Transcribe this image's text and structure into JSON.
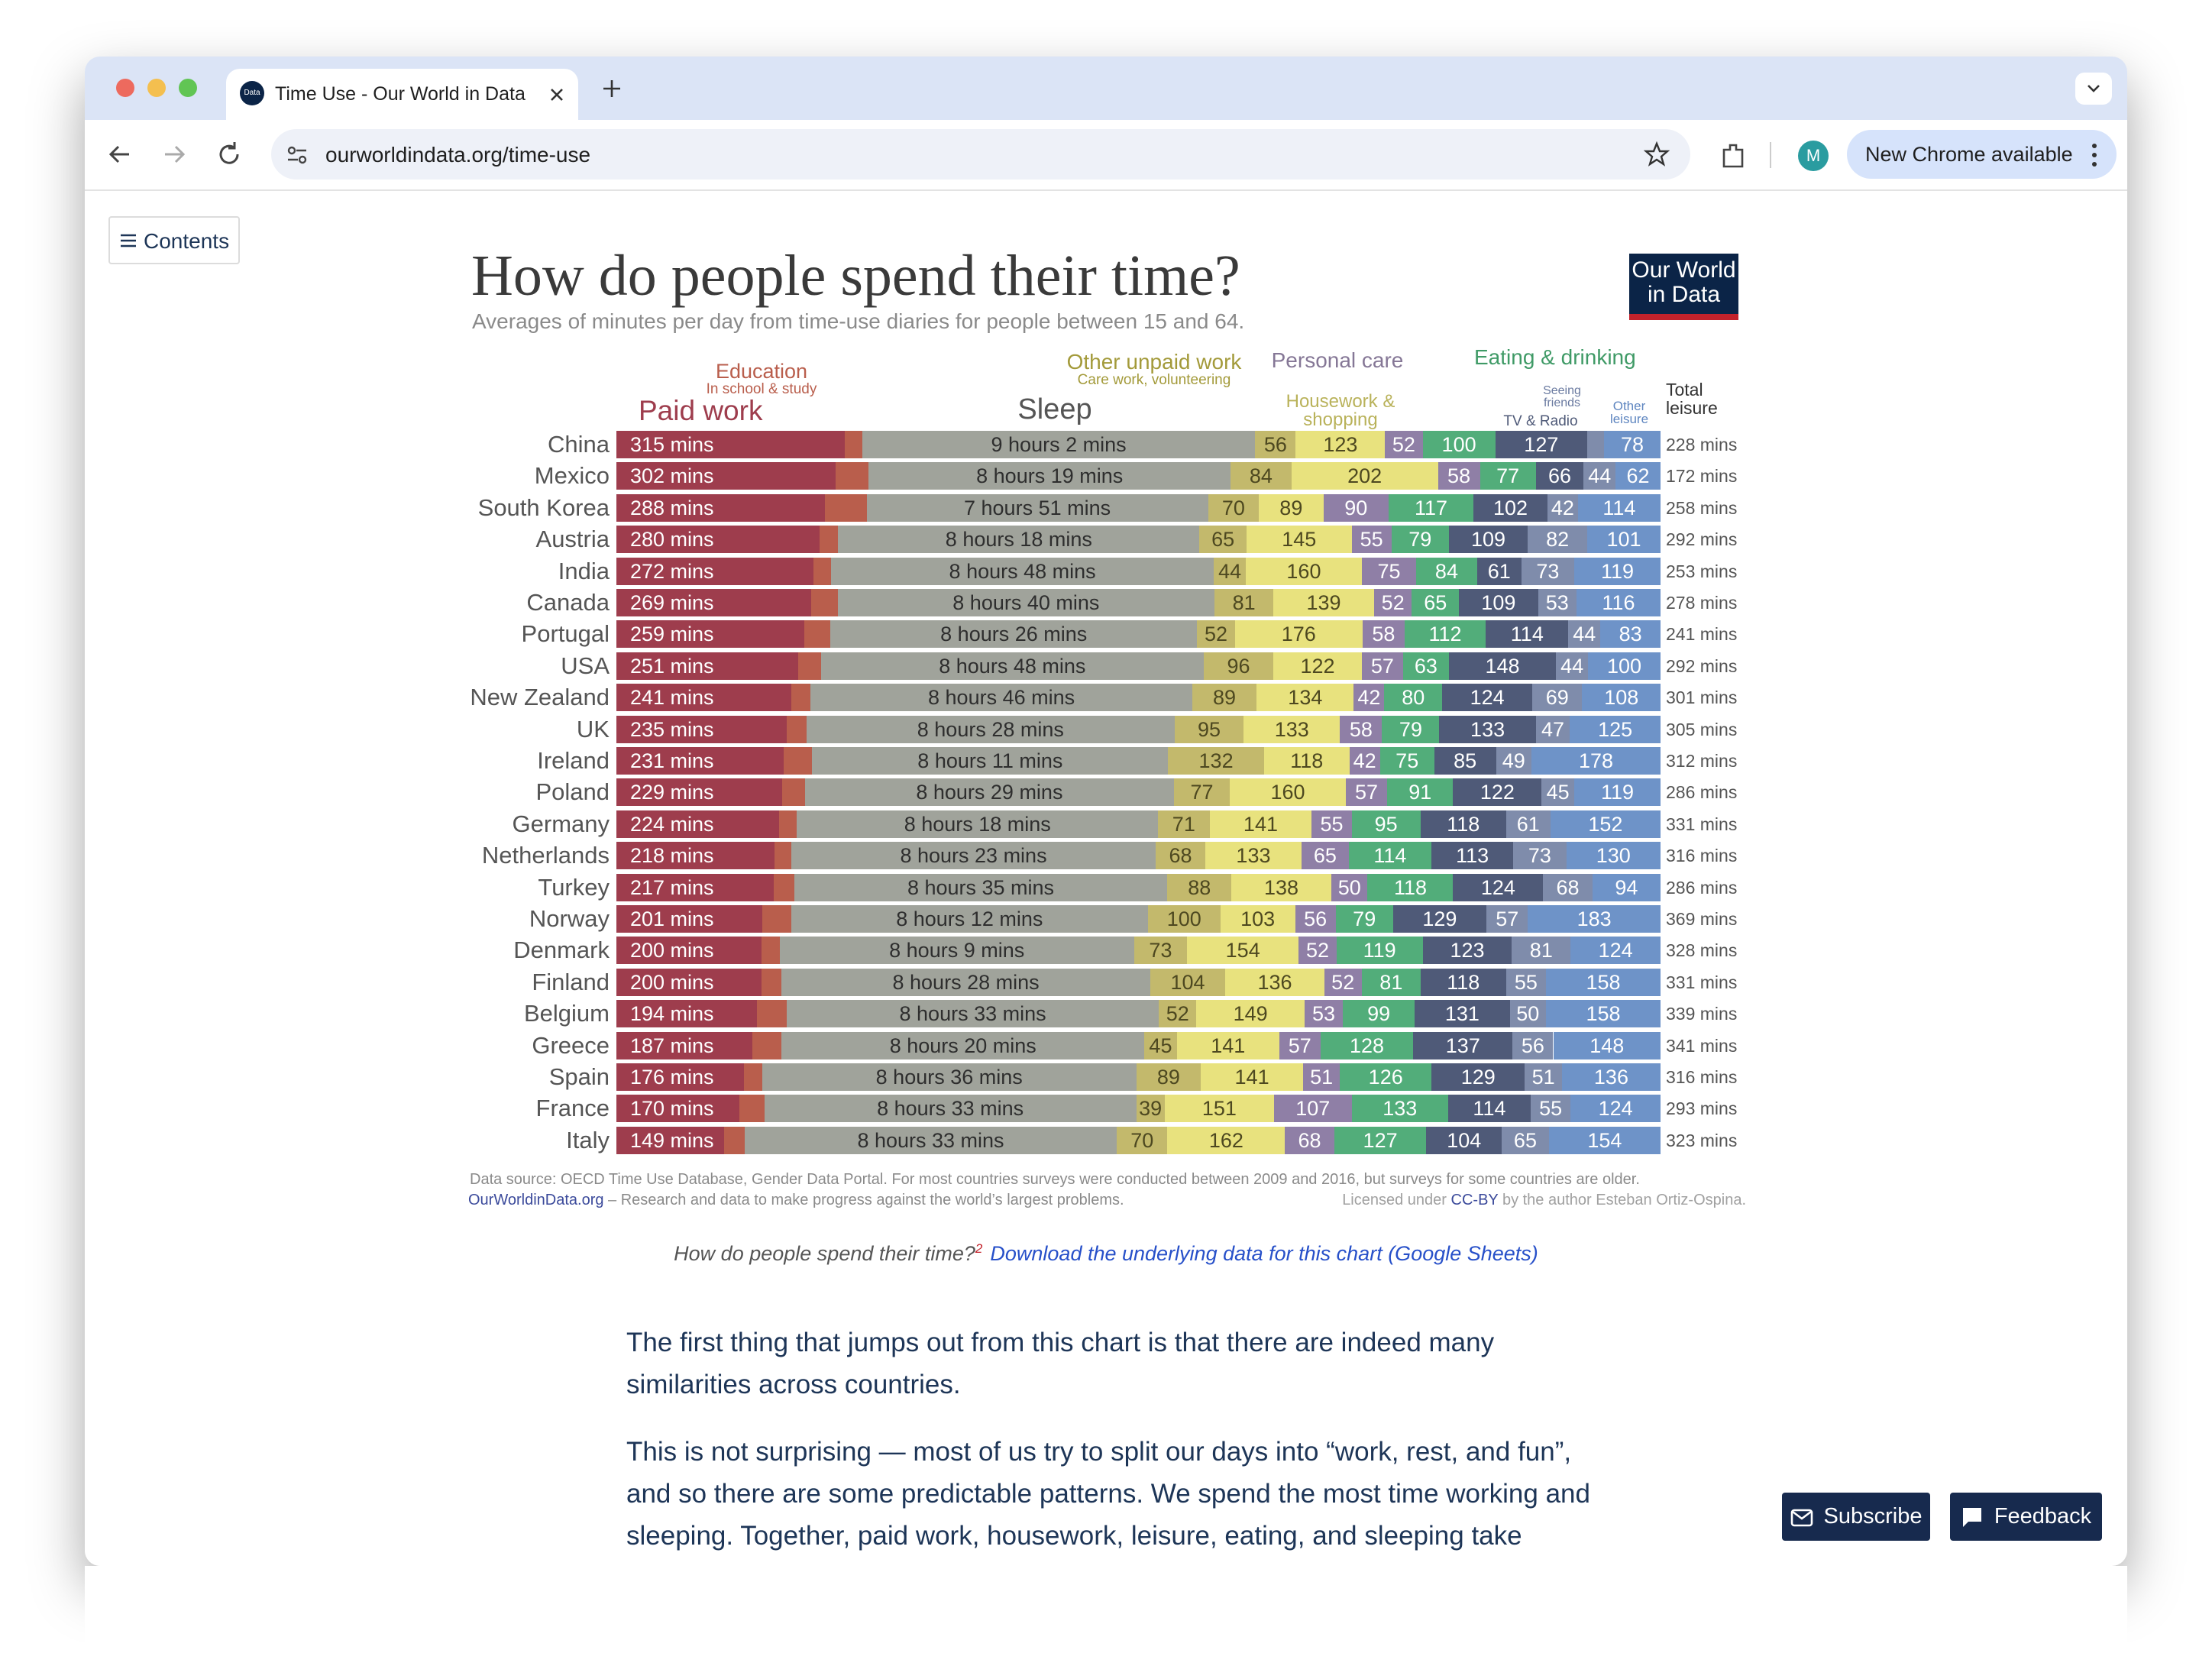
{
  "browser": {
    "tab_title": "Time Use - Our World in Data",
    "favicon": "Data",
    "url": "ourworldindata.org/time-use",
    "profile": "M",
    "update": "New Chrome available"
  },
  "page": {
    "contents": "Contents",
    "logo": "Our World in Data",
    "source": "Data source: OECD Time Use Database, Gender Data Portal. For most countries surveys were conducted between 2009 and 2016, but surveys for some countries are older.",
    "site_link": "OurWorldinData.org",
    "site_tagline": " – Research and data to make progress against the world’s largest problems.",
    "license_prefix": "Licensed under ",
    "license_link": "CC-BY",
    "license_suffix": " by the author Esteban Ortiz-Ospina.",
    "caption": "How do people spend their time?",
    "footnote": "2",
    "download": "Download the underlying data for this chart (Google Sheets)",
    "paragraphs": [
      "The first thing that jumps out from this chart is that there are indeed many similarities across countries.",
      "This is not surprising — most of us try to split our days into “work, rest, and fun”, and so there are some predictable patterns. We spend the most time working and sleeping. Together, paid work, housework, leisure, eating, and sleeping take"
    ],
    "subscribe": "Subscribe",
    "feedback": "Feedback"
  },
  "chart_data": {
    "type": "bar",
    "orientation": "horizontal",
    "stacked": true,
    "title": "How do people spend their time?",
    "subtitle": "Averages of minutes per day from time-use diaries for people between 15 and 64.",
    "xlim": [
      0,
      1440
    ],
    "categories": [
      "China",
      "Mexico",
      "South Korea",
      "Austria",
      "India",
      "Canada",
      "Portugal",
      "USA",
      "New Zealand",
      "UK",
      "Ireland",
      "Poland",
      "Germany",
      "Netherlands",
      "Turkey",
      "Norway",
      "Denmark",
      "Finland",
      "Belgium",
      "Greece",
      "Spain",
      "France",
      "Italy"
    ],
    "series": [
      {
        "name": "Paid work",
        "color": "#9e3d4d",
        "label_color": "#ffffff",
        "name_color": "#9e3d4d",
        "values": [
          315,
          302,
          288,
          280,
          272,
          269,
          259,
          251,
          241,
          235,
          231,
          229,
          224,
          218,
          217,
          201,
          200,
          200,
          194,
          187,
          176,
          170,
          149
        ],
        "value_labels": [
          "315 mins",
          "302 mins",
          "288 mins",
          "280 mins",
          "272 mins",
          "269 mins",
          "259 mins",
          "251 mins",
          "241 mins",
          "235 mins",
          "231 mins",
          "229 mins",
          "224 mins",
          "218 mins",
          "217 mins",
          "201 mins",
          "200 mins",
          "200 mins",
          "194 mins",
          "187 mins",
          "176 mins",
          "170 mins",
          "149 mins"
        ]
      },
      {
        "name": "Education",
        "note": "In school & study",
        "color": "#b95e4c",
        "name_color": "#b95e4c",
        "labels": false,
        "values": [
          24,
          46,
          57,
          26,
          24,
          36,
          36,
          31,
          27,
          27,
          39,
          31,
          25,
          23,
          28,
          40,
          25,
          28,
          41,
          41,
          25,
          34,
          28
        ]
      },
      {
        "name": "Sleep",
        "color": "#a0a39b",
        "label_color": "#2e2e2e",
        "name_color": "#555555",
        "values": [
          542,
          499,
          471,
          498,
          528,
          520,
          506,
          528,
          526,
          508,
          491,
          509,
          498,
          503,
          515,
          492,
          489,
          508,
          513,
          500,
          516,
          513,
          513
        ],
        "value_labels": [
          "9 hours 2 mins",
          "8 hours 19 mins",
          "7 hours 51 mins",
          "8 hours 18 mins",
          "8 hours 48 mins",
          "8 hours 40 mins",
          "8 hours 26 mins",
          "8 hours 48 mins",
          "8 hours 46 mins",
          "8 hours 28 mins",
          "8 hours 11 mins",
          "8 hours 29 mins",
          "8 hours 18 mins",
          "8 hours 23 mins",
          "8 hours 35 mins",
          "8 hours 12 mins",
          "8 hours 9 mins",
          "8 hours 28 mins",
          "8 hours 33 mins",
          "8 hours 20 mins",
          "8 hours 36 mins",
          "8 hours 33 mins",
          "8 hours 33 mins"
        ]
      },
      {
        "name": "Other unpaid work",
        "note": "Care work, volunteering",
        "color": "#c3b96c",
        "label_color": "#4d4820",
        "name_color": "#a39a3a",
        "values": [
          56,
          84,
          70,
          65,
          44,
          81,
          52,
          96,
          89,
          95,
          132,
          77,
          71,
          68,
          88,
          100,
          73,
          104,
          52,
          45,
          89,
          39,
          70
        ]
      },
      {
        "name": "Housework & shopping",
        "color": "#e8e27e",
        "label_color": "#4d4820",
        "name_color": "#b9b25a",
        "values": [
          123,
          202,
          89,
          145,
          160,
          139,
          176,
          122,
          134,
          133,
          118,
          160,
          141,
          133,
          138,
          103,
          154,
          136,
          149,
          141,
          141,
          151,
          162
        ]
      },
      {
        "name": "Personal care",
        "color": "#8f7fa6",
        "label_color": "#ffffff",
        "name_color": "#857796",
        "values": [
          52,
          58,
          90,
          55,
          75,
          52,
          58,
          57,
          42,
          58,
          42,
          57,
          55,
          65,
          50,
          56,
          52,
          52,
          53,
          57,
          51,
          107,
          68
        ]
      },
      {
        "name": "Eating & drinking",
        "color": "#52ad7a",
        "label_color": "#ffffff",
        "name_color": "#3f9a66",
        "values": [
          100,
          77,
          117,
          79,
          84,
          65,
          112,
          63,
          80,
          79,
          75,
          91,
          95,
          114,
          118,
          79,
          119,
          81,
          99,
          128,
          126,
          133,
          127
        ]
      },
      {
        "name": "TV & Radio",
        "color": "#4f5a78",
        "label_color": "#ffffff",
        "name_color": "#4f5a78",
        "values": [
          127,
          66,
          102,
          109,
          61,
          109,
          114,
          148,
          124,
          133,
          85,
          122,
          118,
          113,
          124,
          129,
          123,
          118,
          131,
          137,
          129,
          114,
          104
        ]
      },
      {
        "name": "Seeing friends",
        "color": "#7f8cab",
        "label_color": "#ffffff",
        "name_color": "#6a7aa0",
        "values": [
          23,
          44,
          42,
          82,
          73,
          53,
          44,
          44,
          69,
          47,
          49,
          45,
          61,
          73,
          68,
          57,
          81,
          55,
          50,
          56,
          51,
          55,
          65
        ]
      },
      {
        "name": "Other leisure",
        "color": "#6e93c8",
        "label_color": "#ffffff",
        "name_color": "#5f86c0",
        "values": [
          78,
          62,
          114,
          101,
          119,
          116,
          83,
          100,
          108,
          125,
          178,
          119,
          152,
          130,
          94,
          183,
          124,
          158,
          158,
          148,
          136,
          124,
          154
        ]
      }
    ],
    "total": {
      "name": "Total leisure",
      "values": [
        228,
        172,
        258,
        292,
        253,
        278,
        241,
        292,
        301,
        305,
        312,
        286,
        331,
        316,
        286,
        369,
        328,
        331,
        339,
        341,
        316,
        293,
        323
      ],
      "value_labels": [
        "228 mins",
        "172 mins",
        "258 mins",
        "292 mins",
        "253 mins",
        "278 mins",
        "241 mins",
        "292 mins",
        "301 mins",
        "305 mins",
        "312 mins",
        "286 mins",
        "331 mins",
        "316 mins",
        "286 mins",
        "369 mins",
        "328 mins",
        "331 mins",
        "339 mins",
        "341 mins",
        "316 mins",
        "293 mins",
        "323 mins"
      ]
    }
  }
}
